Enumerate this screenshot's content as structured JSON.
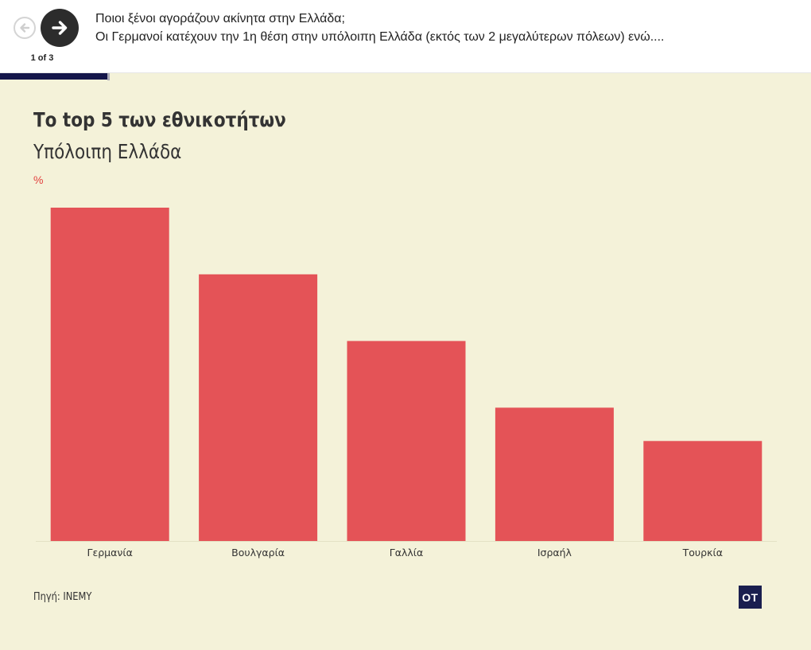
{
  "nav": {
    "counter": "1 of 3",
    "prev_icon": "arrow-left-icon",
    "next_icon": "arrow-right-icon"
  },
  "story": {
    "title": "Ποιοι ξένοι αγοράζουν ακίνητα στην Ελλάδα;",
    "subtitle": "Οι Γερμανοί κατέχουν την 1η θέση στην υπόλοιπη Ελλάδα (εκτός των 2 μεγαλύτερων πόλεων) ενώ...."
  },
  "progress": {
    "fraction": 0.133,
    "color": "#14164a"
  },
  "chart_data": {
    "type": "bar",
    "title": "Το top 5 των εθνικοτήτων",
    "subtitle": "Υπόλοιπη Ελλάδα",
    "ylabel": "%",
    "categories": [
      "Γερμανία",
      "Βουλγαρία",
      "Γαλλία",
      "Ισραήλ",
      "Τουρκία"
    ],
    "values": [
      10,
      8,
      6,
      4,
      3
    ],
    "ylim": [
      0,
      10
    ],
    "grid": false,
    "bar_color": "#e45357",
    "background": "#f4f2d9",
    "source": "Πηγή: INEMY"
  },
  "logo": {
    "text": "OT",
    "color": "#1a1f4f"
  }
}
